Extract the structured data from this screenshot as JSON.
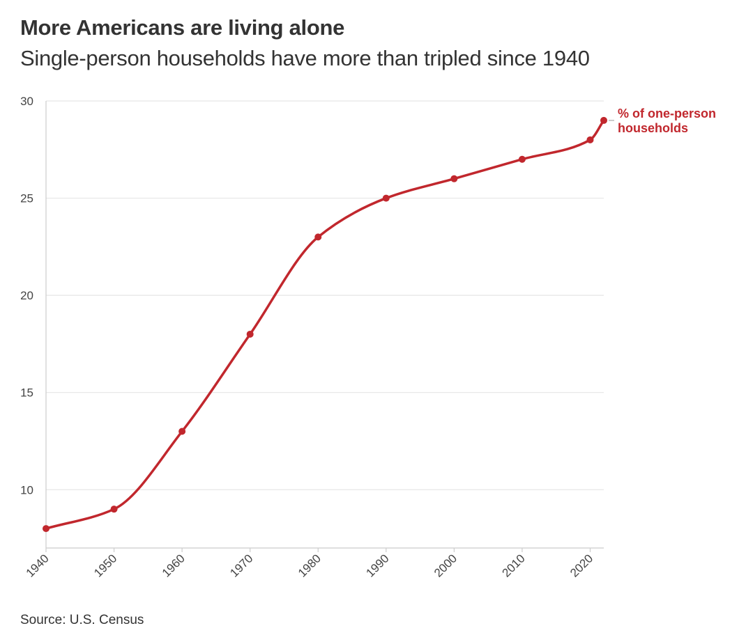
{
  "header": {
    "title": "More Americans are living alone",
    "subtitle": "Single-person households have more than tripled since 1940"
  },
  "footer": {
    "source": "Source: U.S. Census"
  },
  "chart_data": {
    "type": "line",
    "title": "More Americans are living alone",
    "subtitle": "Single-person households have more than tripled since 1940",
    "xlabel": "",
    "ylabel": "",
    "x": [
      1940,
      1950,
      1960,
      1970,
      1980,
      1990,
      2000,
      2010,
      2020,
      2022
    ],
    "series": [
      {
        "name": "% of one-person households",
        "label_lines": [
          "% of one-person",
          "households"
        ],
        "values": [
          8,
          9,
          13,
          18,
          23,
          25,
          26,
          27,
          28,
          29
        ],
        "color": "#c1272d"
      }
    ],
    "xlim": [
      1940,
      2022
    ],
    "ylim": [
      7,
      30
    ],
    "x_ticks": [
      1940,
      1950,
      1960,
      1970,
      1980,
      1990,
      2000,
      2010,
      2020
    ],
    "y_ticks": [
      10,
      15,
      20,
      25,
      30
    ],
    "grid": true,
    "gridline_color": "#e6e6e6",
    "axis_color": "#cccccc",
    "source": "Source: U.S. Census"
  }
}
